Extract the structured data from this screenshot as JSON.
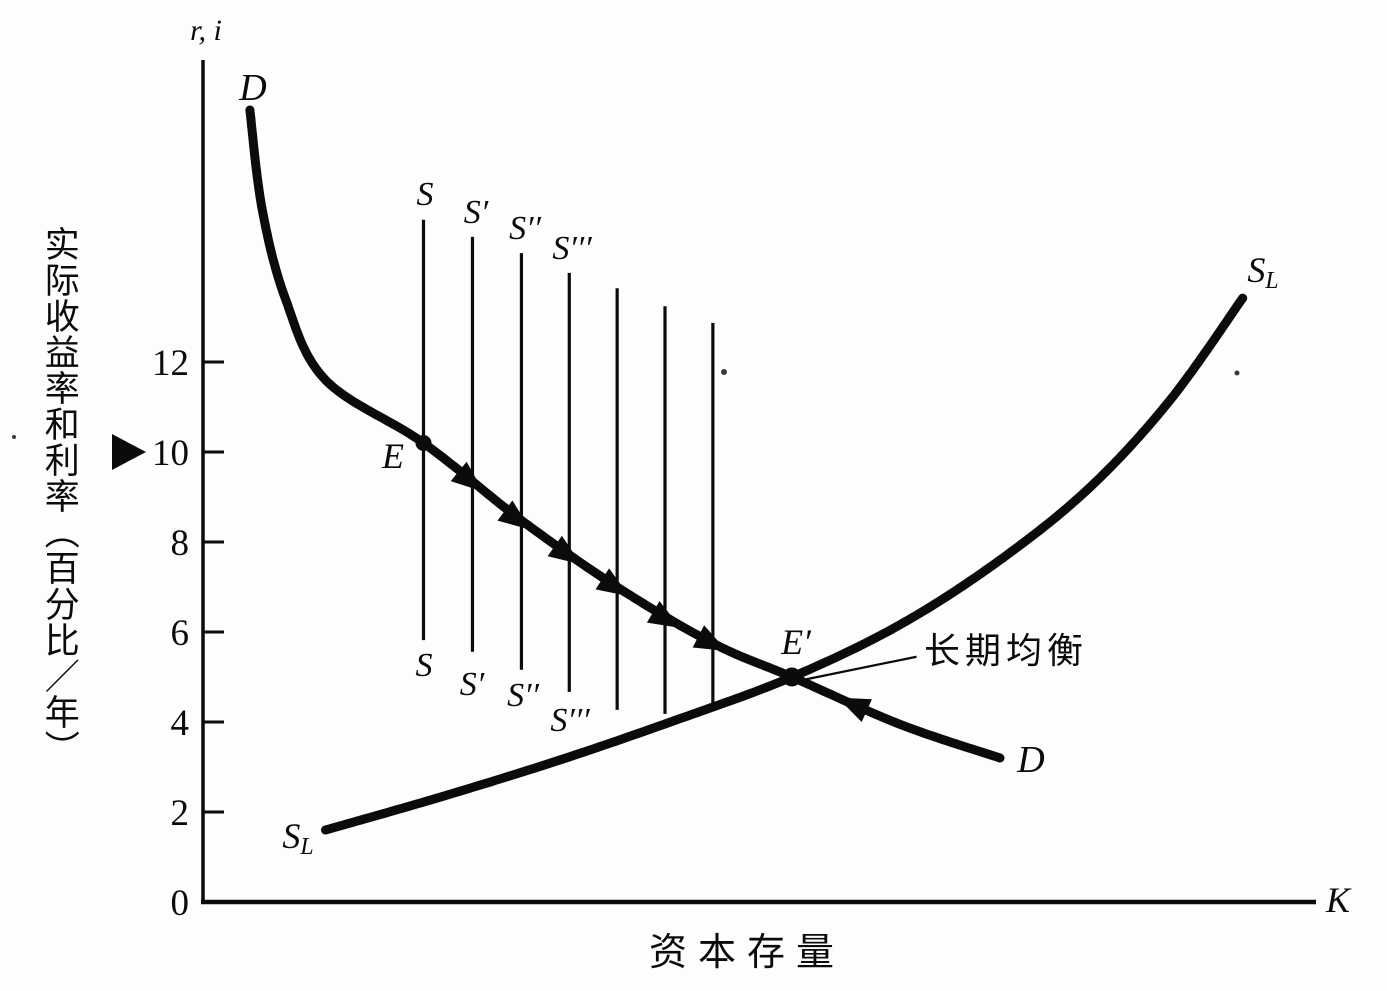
{
  "figure": {
    "kind": "economics-diagram",
    "ink_color": "#0b0b0b",
    "paper_color": "#fdfdfc"
  },
  "labels": {
    "y_axis_corner": "r, i",
    "x_axis_end": "K",
    "x_axis_title": "资本存量",
    "y_axis_title_vertical": "实际收益率和利率（百分比／年）",
    "demand_top": "D",
    "demand_bottom": "D",
    "long_run_supply": {
      "main": "S",
      "sub": "L"
    },
    "point_E": "E",
    "point_E_prime": "E′",
    "long_run_equilibrium_note": "长期均衡",
    "short_run_top": [
      "S",
      "S′",
      "S′′",
      "S′′′"
    ],
    "short_run_bottom": [
      "S",
      "S′",
      "S′′",
      "S′′′"
    ]
  },
  "chart_data": {
    "type": "line",
    "title": "",
    "xlabel": "资本存量",
    "x_axis_symbol": "K",
    "ylabel": "实际收益率和利率（百分比／年）",
    "y_axis_symbol": "r, i",
    "xlim": [
      0,
      100
    ],
    "ylim": [
      0,
      18.7
    ],
    "y_ticks": [
      0,
      2,
      4,
      6,
      8,
      10,
      12
    ],
    "grid": false,
    "legend": "none",
    "series": [
      {
        "name": "D",
        "role": "capital-demand-curve",
        "points": [
          [
            4.3,
            17.6
          ],
          [
            5.4,
            15.4
          ],
          [
            7.5,
            13.4
          ],
          [
            11.1,
            11.6
          ],
          [
            19.9,
            10.2
          ],
          [
            28.6,
            8.5
          ],
          [
            37.3,
            7.0
          ],
          [
            45.9,
            5.75
          ],
          [
            53.0,
            5.0
          ],
          [
            62.7,
            3.95
          ],
          [
            71.7,
            3.2
          ]
        ]
      },
      {
        "name": "SL",
        "role": "long-run-capital-supply-curve",
        "points": [
          [
            11.1,
            1.6
          ],
          [
            21.4,
            2.33
          ],
          [
            32.2,
            3.16
          ],
          [
            42.9,
            4.07
          ],
          [
            53.0,
            5.0
          ],
          [
            62.7,
            6.16
          ],
          [
            71.7,
            7.6
          ],
          [
            79.8,
            9.22
          ],
          [
            87.0,
            11.16
          ],
          [
            93.5,
            13.42
          ]
        ]
      }
    ],
    "short_run_supply_lines": [
      {
        "label": "S",
        "k": 19.9,
        "r_top": 15.16,
        "r_bottom": 5.82
      },
      {
        "label": "S′",
        "k": 24.3,
        "r_top": 14.78,
        "r_bottom": 5.56
      },
      {
        "label": "S′′",
        "k": 28.7,
        "r_top": 14.42,
        "r_bottom": 5.16
      },
      {
        "label": "S′′′",
        "k": 33.0,
        "r_top": 13.98,
        "r_bottom": 4.67
      },
      {
        "label": "",
        "k": 37.3,
        "r_top": 13.64,
        "r_bottom": 4.27
      },
      {
        "label": "",
        "k": 41.6,
        "r_top": 13.24,
        "r_bottom": 4.18
      },
      {
        "label": "",
        "k": 45.9,
        "r_top": 12.87,
        "r_bottom": 4.36
      }
    ],
    "points": [
      {
        "name": "E",
        "k": 19.9,
        "r": 10.2
      },
      {
        "name": "E′",
        "k": 53.0,
        "r": 5.0
      }
    ],
    "flow_arrows_on_D": [
      {
        "k": 24.1,
        "dir": "forward"
      },
      {
        "k": 28.3,
        "dir": "forward"
      },
      {
        "k": 32.8,
        "dir": "forward"
      },
      {
        "k": 37.1,
        "dir": "forward"
      },
      {
        "k": 41.7,
        "dir": "forward"
      },
      {
        "k": 45.8,
        "dir": "forward"
      },
      {
        "k": 58.5,
        "dir": "backward"
      }
    ],
    "axis_marker": {
      "r": 10
    },
    "annotation": {
      "text": "长期均衡",
      "target_point": "E′",
      "leader": [
        [
          54.3,
          4.95
        ],
        [
          64.2,
          5.45
        ]
      ]
    },
    "scan_specks": [
      [
        724,
        372,
        3
      ],
      [
        1237,
        373,
        2.5
      ],
      [
        14,
        437,
        2
      ]
    ]
  }
}
